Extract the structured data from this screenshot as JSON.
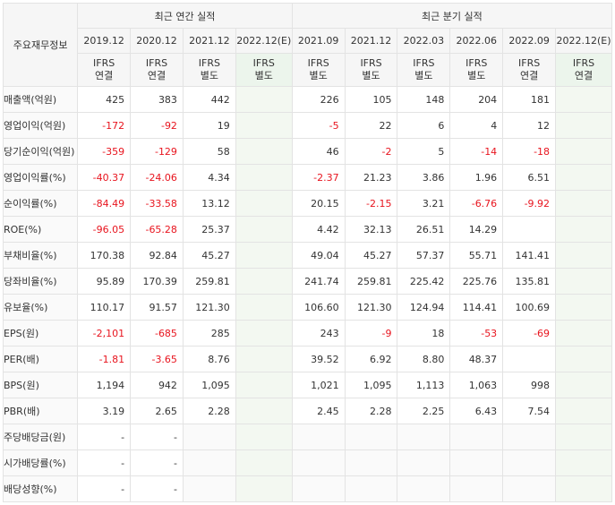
{
  "header": {
    "corner_label": "주요재무정보",
    "annual_group": "최근 연간 실적",
    "quarter_group": "최근 분기 실적",
    "annual_periods": [
      "2019.12",
      "2020.12",
      "2021.12",
      "2022.12(E)"
    ],
    "quarter_periods": [
      "2021.09",
      "2021.12",
      "2022.03",
      "2022.06",
      "2022.09",
      "2022.12(E)"
    ],
    "annual_standards": [
      "IFRS\n연결",
      "IFRS\n연결",
      "IFRS\n별도",
      "IFRS\n별도"
    ],
    "quarter_standards": [
      "IFRS\n별도",
      "IFRS\n별도",
      "IFRS\n별도",
      "IFRS\n별도",
      "IFRS\n연결",
      "IFRS\n연결"
    ]
  },
  "rows": [
    {
      "label": "매출액(억원)",
      "values": [
        "425",
        "383",
        "442",
        "",
        "226",
        "105",
        "148",
        "204",
        "181",
        ""
      ]
    },
    {
      "label": "영업이익(억원)",
      "values": [
        "-172",
        "-92",
        "19",
        "",
        "-5",
        "22",
        "6",
        "4",
        "12",
        ""
      ]
    },
    {
      "label": "당기순이익(억원)",
      "values": [
        "-359",
        "-129",
        "58",
        "",
        "46",
        "-2",
        "5",
        "-14",
        "-18",
        ""
      ]
    },
    {
      "label": "영업이익률(%)",
      "values": [
        "-40.37",
        "-24.06",
        "4.34",
        "",
        "-2.37",
        "21.23",
        "3.86",
        "1.96",
        "6.51",
        ""
      ]
    },
    {
      "label": "순이익률(%)",
      "values": [
        "-84.49",
        "-33.58",
        "13.12",
        "",
        "20.15",
        "-2.15",
        "3.21",
        "-6.76",
        "-9.92",
        ""
      ]
    },
    {
      "label": "ROE(%)",
      "values": [
        "-96.05",
        "-65.28",
        "25.37",
        "",
        "4.42",
        "32.13",
        "26.51",
        "14.29",
        "",
        ""
      ]
    },
    {
      "label": "부채비율(%)",
      "values": [
        "170.38",
        "92.84",
        "45.27",
        "",
        "49.04",
        "45.27",
        "57.37",
        "55.71",
        "141.41",
        ""
      ]
    },
    {
      "label": "당좌비율(%)",
      "values": [
        "95.89",
        "170.39",
        "259.81",
        "",
        "241.74",
        "259.81",
        "225.42",
        "225.76",
        "135.81",
        ""
      ]
    },
    {
      "label": "유보율(%)",
      "values": [
        "110.17",
        "91.57",
        "121.30",
        "",
        "106.60",
        "121.30",
        "124.94",
        "114.41",
        "100.69",
        ""
      ]
    },
    {
      "label": "EPS(원)",
      "values": [
        "-2,101",
        "-685",
        "285",
        "",
        "243",
        "-9",
        "18",
        "-53",
        "-69",
        ""
      ]
    },
    {
      "label": "PER(배)",
      "values": [
        "-1.81",
        "-3.65",
        "8.76",
        "",
        "39.52",
        "6.92",
        "8.80",
        "48.37",
        "",
        ""
      ]
    },
    {
      "label": "BPS(원)",
      "values": [
        "1,194",
        "942",
        "1,095",
        "",
        "1,021",
        "1,095",
        "1,113",
        "1,063",
        "998",
        ""
      ]
    },
    {
      "label": "PBR(배)",
      "values": [
        "3.19",
        "2.65",
        "2.28",
        "",
        "2.45",
        "2.28",
        "2.25",
        "6.43",
        "7.54",
        ""
      ]
    },
    {
      "label": "주당배당금(원)",
      "values": [
        "-",
        "-",
        "",
        "",
        "",
        "",
        "",
        "",
        "",
        ""
      ]
    },
    {
      "label": "시가배당률(%)",
      "values": [
        "-",
        "-",
        "",
        "",
        "",
        "",
        "",
        "",
        "",
        ""
      ]
    },
    {
      "label": "배당성향(%)",
      "values": [
        "-",
        "-",
        "",
        "",
        "",
        "",
        "",
        "",
        "",
        ""
      ]
    }
  ],
  "colors": {
    "negative": "#e8141e",
    "standard": "#e85d10",
    "estimate": "#2e8b57"
  }
}
